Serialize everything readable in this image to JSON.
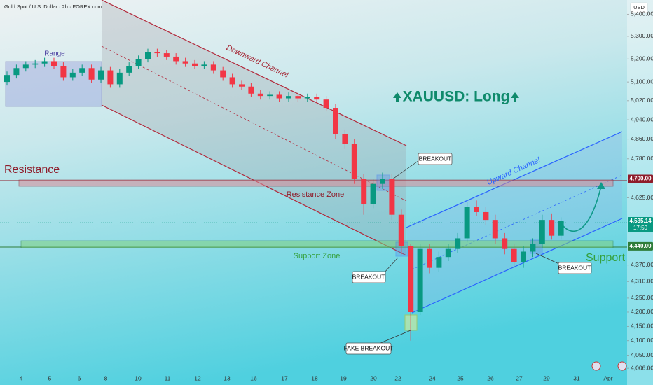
{
  "chart_data": {
    "type": "candlestick",
    "title": "Gold Spot / U.S. Dollar · 2h · FOREX.com",
    "currency": "USD",
    "log_scale": true,
    "ylim": [
      3985,
      5465
    ],
    "yticks": [
      {
        "value": 5400,
        "label": "5,400.00"
      },
      {
        "value": 5300,
        "label": "5,300.00"
      },
      {
        "value": 5200,
        "label": "5,200.00"
      },
      {
        "value": 5100,
        "label": "5,100.00"
      },
      {
        "value": 5020,
        "label": "5,020.00"
      },
      {
        "value": 4940,
        "label": "4,940.00"
      },
      {
        "value": 4860,
        "label": "4,860.00"
      },
      {
        "value": 4780,
        "label": "4,780.00"
      },
      {
        "value": 4625,
        "label": "4,625.00"
      },
      {
        "value": 4370,
        "label": "4,370.00"
      },
      {
        "value": 4310,
        "label": "4,310.00"
      },
      {
        "value": 4250,
        "label": "4,250.00"
      },
      {
        "value": 4200,
        "label": "4,200.00"
      },
      {
        "value": 4150,
        "label": "4,150.00"
      },
      {
        "value": 4100,
        "label": "4,100.00"
      },
      {
        "value": 4050,
        "label": "4,050.00"
      },
      {
        "value": 4006,
        "label": "4,006.00"
      }
    ],
    "x_labels": [
      "4",
      "5",
      "6",
      "8",
      "10",
      "11",
      "12",
      "13",
      "16",
      "17",
      "18",
      "19",
      "20",
      "22",
      "24",
      "25",
      "26",
      "27",
      "29",
      "31",
      "Apr"
    ],
    "up_color": "#089981",
    "down_color": "#f23645",
    "series": {
      "open": [
        5100,
        5130,
        5160,
        5175,
        5180,
        5190,
        5170,
        5120,
        5140,
        5160,
        5110,
        5150,
        5090,
        5140,
        5170,
        5200,
        5230,
        5225,
        5210,
        5190,
        5180,
        5170,
        5175,
        5150,
        5120,
        5090,
        5080,
        5050,
        5040,
        5045,
        5030,
        5040,
        5030,
        5035,
        5025,
        4990,
        4880,
        4840,
        4700,
        4600,
        4680,
        4700,
        4560,
        4440,
        4200,
        4430,
        4360,
        4400,
        4430,
        4470,
        4590,
        4570,
        4540,
        4470,
        4430,
        4380,
        4420,
        4450,
        4540,
        4480
      ],
      "high": [
        5145,
        5175,
        5190,
        5195,
        5205,
        5205,
        5185,
        5155,
        5175,
        5175,
        5165,
        5165,
        5155,
        5185,
        5215,
        5245,
        5245,
        5240,
        5225,
        5205,
        5195,
        5190,
        5190,
        5165,
        5135,
        5105,
        5095,
        5065,
        5060,
        5060,
        5055,
        5055,
        5050,
        5050,
        5040,
        5005,
        4900,
        4860,
        4720,
        4700,
        4725,
        4720,
        4580,
        4450,
        4450,
        4450,
        4420,
        4450,
        4490,
        4610,
        4615,
        4590,
        4560,
        4490,
        4450,
        4440,
        4470,
        4560,
        4565,
        4550
      ],
      "low": [
        5085,
        5115,
        5145,
        5160,
        5165,
        5155,
        5105,
        5105,
        5125,
        5095,
        5095,
        5075,
        5075,
        5125,
        5155,
        5185,
        5210,
        5195,
        5175,
        5165,
        5155,
        5155,
        5135,
        5105,
        5075,
        5065,
        5035,
        5025,
        5025,
        5015,
        5015,
        5015,
        5015,
        5010,
        4975,
        4860,
        4820,
        4680,
        4560,
        4585,
        4660,
        4540,
        4410,
        4100,
        4190,
        4340,
        4345,
        4385,
        4415,
        4455,
        4555,
        4520,
        4450,
        4410,
        4360,
        4360,
        4400,
        4435,
        4465,
        4465
      ],
      "close": [
        5130,
        5160,
        5175,
        5180,
        5190,
        5170,
        5120,
        5140,
        5160,
        5110,
        5150,
        5090,
        5140,
        5170,
        5200,
        5230,
        5225,
        5210,
        5190,
        5180,
        5170,
        5175,
        5150,
        5120,
        5090,
        5080,
        5050,
        5040,
        5045,
        5030,
        5040,
        5030,
        5035,
        5025,
        4990,
        4880,
        4840,
        4700,
        4600,
        4680,
        4700,
        4560,
        4440,
        4200,
        4430,
        4360,
        4400,
        4430,
        4470,
        4590,
        4570,
        4540,
        4470,
        4430,
        4380,
        4420,
        4450,
        4540,
        4480,
        4535.14
      ]
    },
    "price_tags": [
      {
        "value": 4700,
        "label": "4,700.00",
        "color": "#8e1c2a"
      },
      {
        "value": 4535.14,
        "label": "4,535.14",
        "time": "17:50",
        "color": "#089981"
      },
      {
        "value": 4440,
        "label": "4,440.00",
        "color": "#2f7d3a"
      }
    ],
    "annotations": {
      "range": "Range",
      "downward_channel": "Downward Channel",
      "upward_channel": "Upward Channel",
      "resistance": "Resistance",
      "resistance_zone": "Resistance Zone",
      "support": "Support",
      "support_zone": "Support Zone",
      "headline": "XAUUSD: Long",
      "breakout_1": "BREAKOUT",
      "breakout_2": "BREAKOUT",
      "breakout_3": "BREAKOUT",
      "fake_breakout": "FAKE BREAKOUT"
    }
  }
}
